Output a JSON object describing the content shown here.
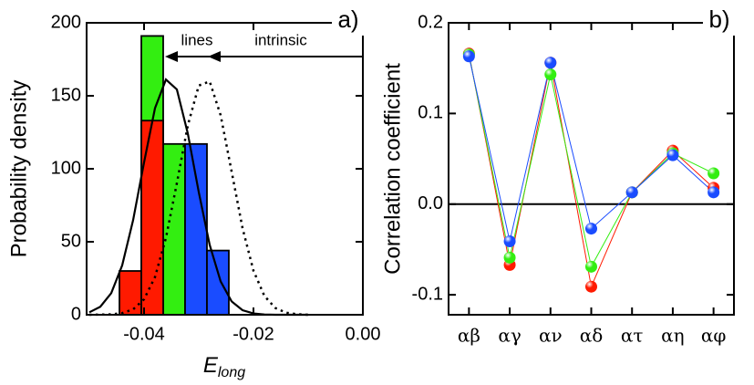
{
  "chart_data": [
    {
      "type": "histogram",
      "panel_label": "a)",
      "ylabel": "Probability density",
      "xlabel": "E",
      "xlabel_subscript": "long",
      "xlim": [
        -0.0505,
        0.0
      ],
      "xticks": [
        {
          "value": -0.04,
          "label": "-0.04"
        },
        {
          "value": -0.02,
          "label": "-0.02"
        },
        {
          "value": 0.0,
          "label": "0.00"
        }
      ],
      "ylim": [
        0,
        200
      ],
      "yticks": [
        0,
        50,
        100,
        150,
        200
      ],
      "annotations": [
        {
          "text": "lines"
        },
        {
          "text": "intrinsic"
        }
      ],
      "series": [
        {
          "color": "#33ee11",
          "bins": [
            -0.0405,
            -0.0365,
            -0.0325
          ],
          "values": [
            191,
            117
          ]
        },
        {
          "color": "#ff1a00",
          "bins": [
            -0.0445,
            -0.0405,
            -0.0365
          ],
          "values": [
            30,
            133
          ]
        },
        {
          "color": "#1a4cff",
          "bins": [
            -0.0325,
            -0.0285,
            -0.0245
          ],
          "values": [
            117,
            44
          ]
        }
      ],
      "x": [
        -0.05,
        -0.048,
        -0.046,
        -0.044,
        -0.042,
        -0.04,
        -0.038,
        -0.036,
        -0.034,
        -0.032,
        -0.03,
        -0.028,
        -0.026,
        -0.024,
        -0.022,
        -0.02,
        -0.018,
        -0.016,
        -0.014,
        -0.012,
        -0.01
      ],
      "curves": [
        {
          "style": "solid",
          "color": "#000000",
          "values": [
            1.7,
            5.5,
            14.8,
            33.8,
            64.8,
            104.4,
            141.5,
            161.1,
            154.3,
            124.2,
            84.0,
            47.8,
            22.9,
            9.2,
            3.1,
            0.9,
            0.2,
            0.0,
            0.0,
            0.0,
            0.0
          ]
        },
        {
          "style": "dotted",
          "color": "#000000",
          "values": [
            0.0,
            0.1,
            0.3,
            1.1,
            3.7,
            10.6,
            25.8,
            52.6,
            90.1,
            129.7,
            157.0,
            159.8,
            136.7,
            98.3,
            59.4,
            30.2,
            12.9,
            4.6,
            1.4,
            0.4,
            0.0
          ]
        }
      ]
    },
    {
      "type": "line",
      "panel_label": "b)",
      "ylabel": "Correlation coefficient",
      "categories": [
        "αβ",
        "αγ",
        "αν",
        "αδ",
        "ατ",
        "αη",
        "αφ"
      ],
      "ylim": [
        -0.122,
        0.2
      ],
      "yticks": [
        {
          "value": -0.1,
          "label": "-0.1"
        },
        {
          "value": 0.0,
          "label": "0.0"
        },
        {
          "value": 0.1,
          "label": "0.1"
        },
        {
          "value": 0.2,
          "label": "0.2"
        }
      ],
      "zero_line": true,
      "series": [
        {
          "color": "#ff1a00",
          "values": [
            0.166,
            -0.067,
            0.156,
            -0.091,
            0.013,
            0.059,
            0.018
          ]
        },
        {
          "color": "#33ee11",
          "values": [
            0.165,
            -0.059,
            0.143,
            -0.069,
            0.013,
            0.056,
            0.034
          ]
        },
        {
          "color": "#1a4cff",
          "values": [
            0.163,
            -0.041,
            0.156,
            -0.027,
            0.013,
            0.054,
            0.013
          ]
        }
      ]
    }
  ]
}
